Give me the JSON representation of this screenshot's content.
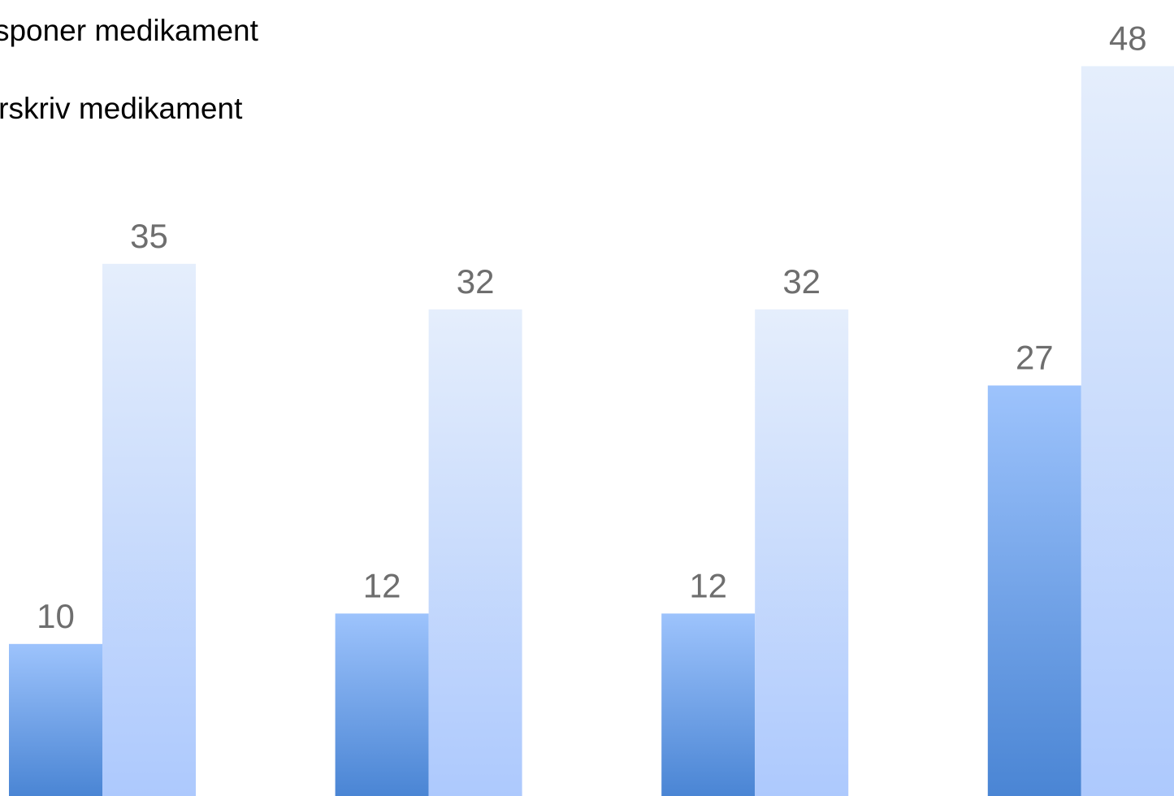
{
  "chart_data": {
    "type": "bar",
    "categories": [
      "",
      "",
      "",
      ""
    ],
    "series": [
      {
        "name": "Disponer medikament",
        "values": [
          10,
          12,
          12,
          27
        ],
        "color": "#4a85d4",
        "color_light": "#9dc3fc"
      },
      {
        "name": "Forskriv medikament",
        "values": [
          35,
          32,
          32,
          48
        ],
        "color": "#adc9fd",
        "color_light": "#e5eefc"
      }
    ],
    "ylim": [
      0,
      55
    ],
    "grid": false,
    "legend": "top-left",
    "data_labels": true
  }
}
